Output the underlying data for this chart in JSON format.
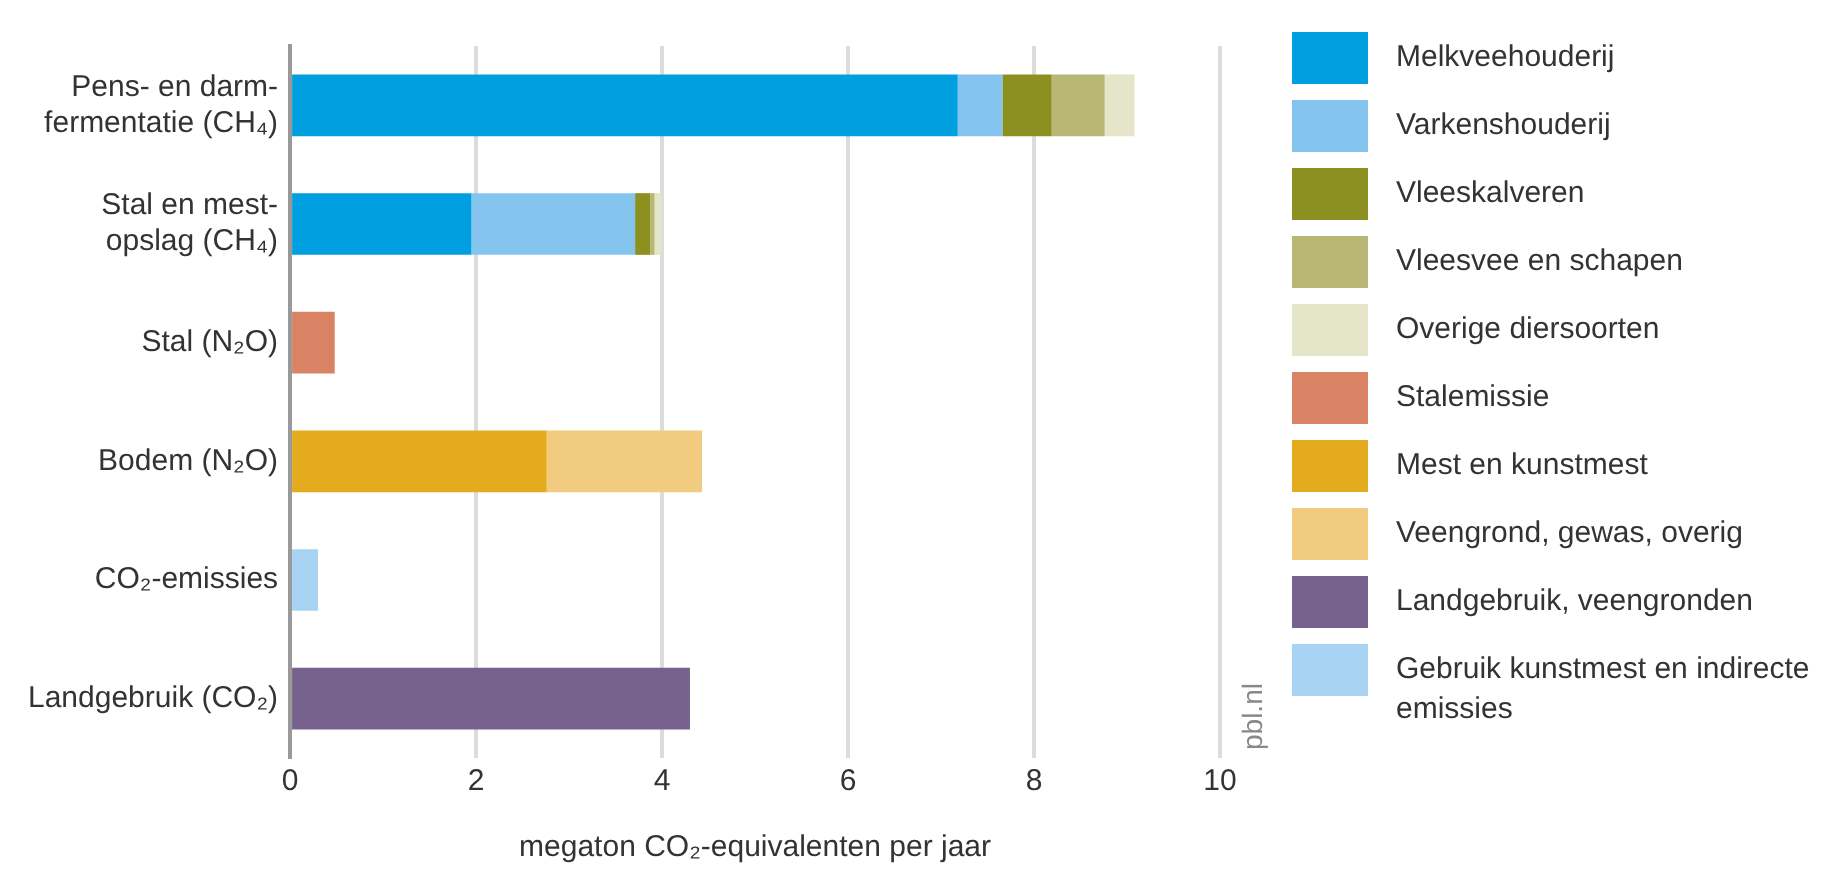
{
  "chart_data": {
    "type": "bar",
    "orientation": "horizontal",
    "stacked": true,
    "categories": [
      "Pens- en darm-fermentatie (CH₄)",
      "Stal en mest-opslag (CH₄)",
      "Stal (N₂O)",
      "Bodem (N₂O)",
      "CO₂-emissies",
      "Landgebruik (CO₂)"
    ],
    "series": [
      {
        "name": "Melkveehouderij",
        "color": "#009fe0",
        "values": [
          7.18,
          1.95,
          null,
          null,
          null,
          null
        ]
      },
      {
        "name": "Varkenshouderij",
        "color": "#85c4ef",
        "values": [
          0.48,
          1.76,
          null,
          null,
          null,
          null
        ]
      },
      {
        "name": "Vleeskalveren",
        "color": "#8c9021",
        "values": [
          0.53,
          0.16,
          null,
          null,
          null,
          null
        ]
      },
      {
        "name": "Vleesvee en schapen",
        "color": "#b8b874",
        "values": [
          0.57,
          0.05,
          null,
          null,
          null,
          null
        ]
      },
      {
        "name": "Overige diersoorten",
        "color": "#e5e5c9",
        "values": [
          0.32,
          0.07,
          null,
          null,
          null,
          null
        ]
      },
      {
        "name": "Stalemissie",
        "color": "#d98264",
        "values": [
          null,
          null,
          0.48,
          null,
          null,
          null
        ]
      },
      {
        "name": "Mest en kunstmest",
        "color": "#e4ab1f",
        "values": [
          null,
          null,
          null,
          2.76,
          null,
          null
        ]
      },
      {
        "name": "Veengrond, gewas, overig",
        "color": "#f0cb80",
        "values": [
          null,
          null,
          null,
          1.67,
          null,
          null
        ]
      },
      {
        "name": "Landgebruik, veengronden",
        "color": "#77628e",
        "values": [
          null,
          null,
          null,
          null,
          null,
          4.3
        ]
      },
      {
        "name": "Gebruik kunstmest en indirecte emissies",
        "color": "#a8d3f3",
        "values": [
          null,
          null,
          null,
          null,
          0.3,
          null
        ]
      }
    ],
    "xlim": [
      0,
      10
    ],
    "xticks": [
      0,
      2,
      4,
      6,
      8,
      10
    ],
    "xlabel": "megaton CO₂-equivalenten per jaar",
    "annotations": [
      "pbl.nl"
    ],
    "grid": "x",
    "legend": "right"
  }
}
